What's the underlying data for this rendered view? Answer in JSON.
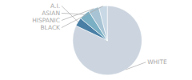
{
  "chart_data": {
    "type": "pie",
    "categories": [
      "WHITE",
      "A.I.",
      "ASIAN",
      "HISPANIC",
      "BLACK"
    ],
    "values": [
      82,
      4,
      5,
      5,
      4
    ],
    "colors": [
      "#ccd5df",
      "#4a7fa5",
      "#7aafc4",
      "#a8c4d4",
      "#c8d8e4"
    ]
  }
}
